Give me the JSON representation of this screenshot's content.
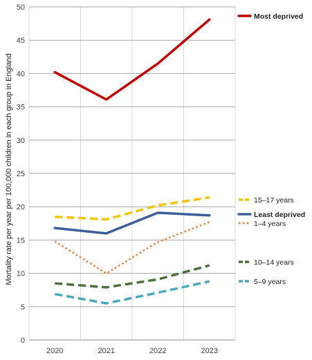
{
  "chart_data": {
    "type": "line",
    "x": [
      2020,
      2021,
      2022,
      2023
    ],
    "xlabel": "",
    "ylabel": "Mortality rate per year per 100,000 children in each group in England",
    "ylim": [
      0,
      50
    ],
    "yticks": [
      0,
      5,
      10,
      15,
      20,
      25,
      30,
      35,
      40,
      45,
      50
    ],
    "grid": true,
    "legend_placement": "right",
    "series": [
      {
        "name": "Most deprived",
        "values": [
          40.2,
          36.1,
          41.5,
          48.1
        ],
        "color": "#c00000",
        "style": "solid",
        "bold": true
      },
      {
        "name": "15–17 years",
        "values": [
          18.5,
          18.1,
          20.2,
          21.4
        ],
        "color": "#f5c400",
        "style": "dashed",
        "bold": false
      },
      {
        "name": "Least deprived",
        "values": [
          16.8,
          16.0,
          19.1,
          18.7
        ],
        "color": "#3c5e9b",
        "style": "solid",
        "bold": true
      },
      {
        "name": "1–4 years",
        "values": [
          14.8,
          10.0,
          14.7,
          17.7
        ],
        "color": "#ed7d31",
        "style": "dotted",
        "bold": false
      },
      {
        "name": "10–14 years",
        "values": [
          8.5,
          7.9,
          9.1,
          11.2
        ],
        "color": "#4e6e3c",
        "style": "dashed",
        "bold": false
      },
      {
        "name": "5–9 years",
        "values": [
          6.9,
          5.5,
          7.1,
          8.8
        ],
        "color": "#49a9bd",
        "style": "dashed",
        "bold": false
      }
    ]
  }
}
